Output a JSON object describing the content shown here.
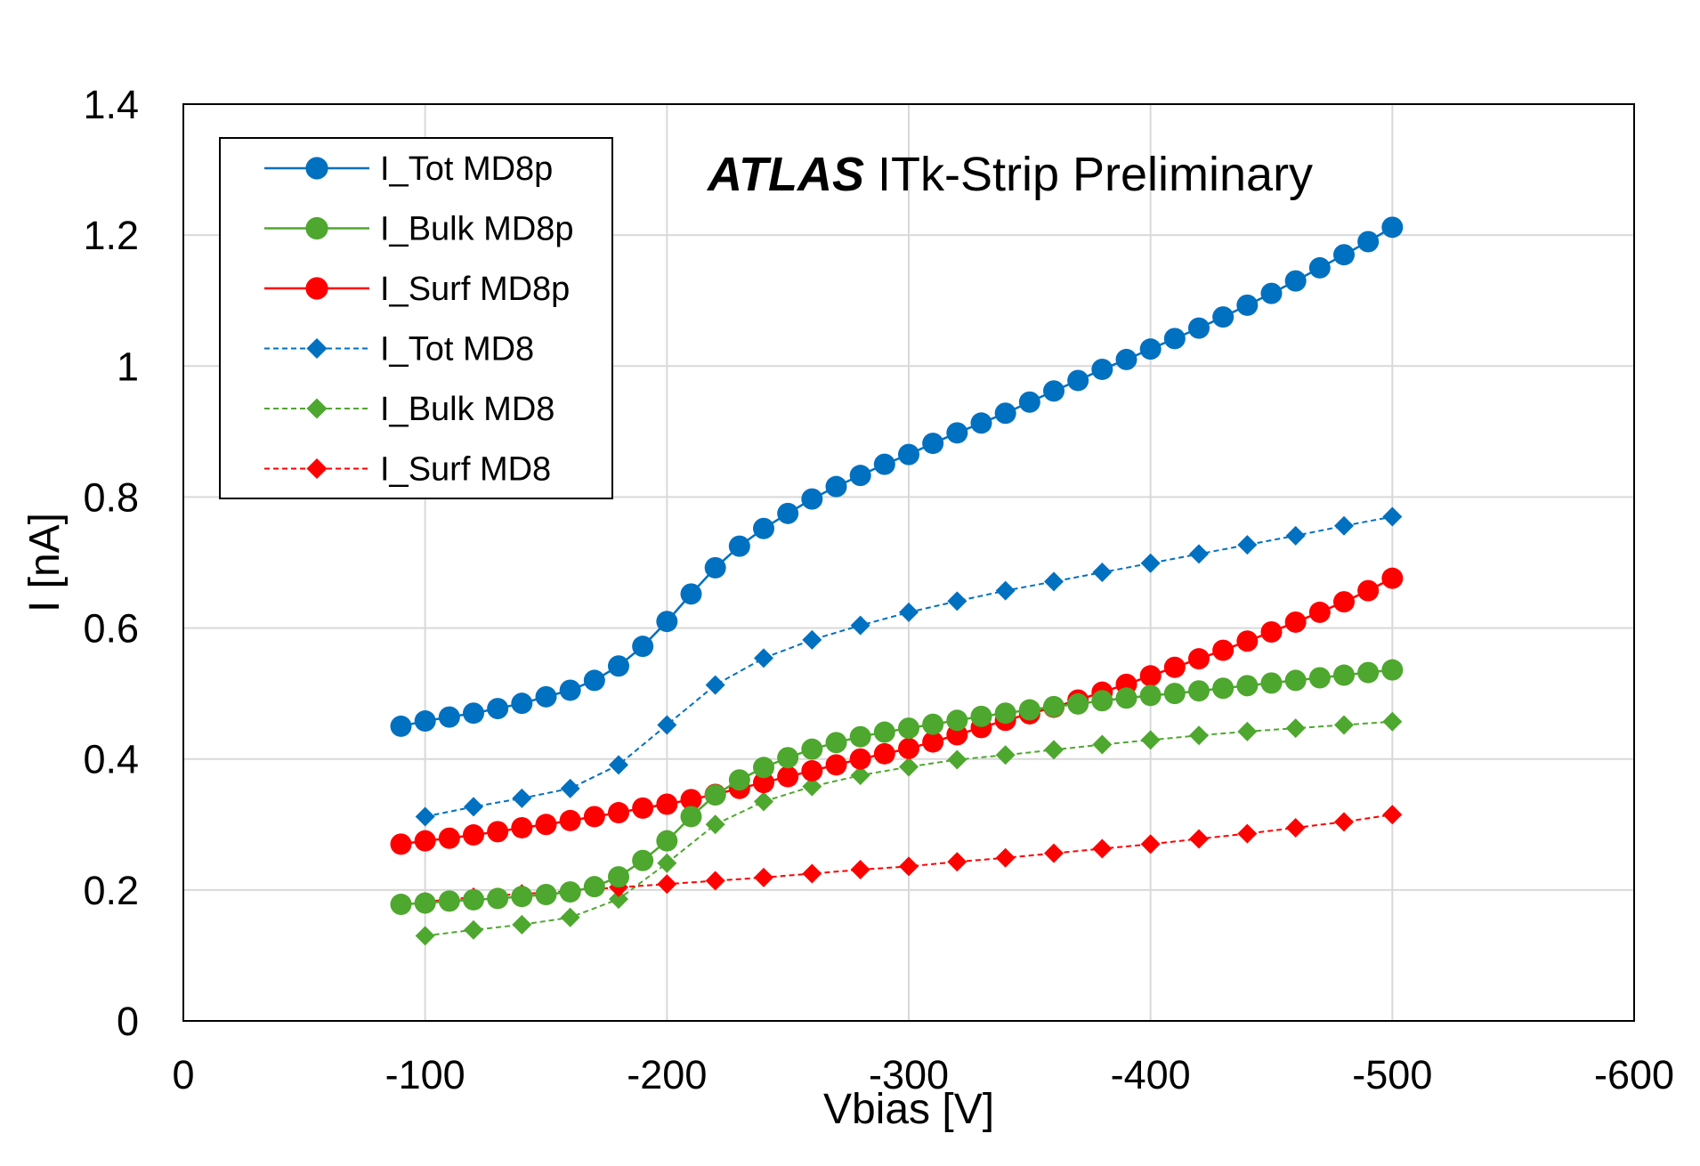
{
  "chart_data": {
    "type": "line",
    "title_bold": "ATLAS",
    "title_rest": " ITk-Strip Preliminary",
    "xlabel": "Vbias [V]",
    "ylabel": "I [nA]",
    "xlim": [
      0,
      -600
    ],
    "ylim": [
      0,
      1.4
    ],
    "xticks": [
      0,
      -100,
      -200,
      -300,
      -400,
      -500,
      -600
    ],
    "yticks": [
      0,
      0.2,
      0.4,
      0.6,
      0.8,
      1,
      1.2,
      1.4
    ],
    "xtick_labels": [
      "0",
      "-100",
      "-200",
      "-300",
      "-400",
      "-500",
      "-600"
    ],
    "ytick_labels": [
      "0",
      "0.2",
      "0.4",
      "0.6",
      "0.8",
      "1",
      "1.2",
      "1.4"
    ],
    "grid": true,
    "legend_position": "top-left",
    "series": [
      {
        "name": "I_Tot MD8p",
        "color": "#0070C0",
        "marker": "circle",
        "line": "solid",
        "x": [
          -90,
          -100,
          -110,
          -120,
          -130,
          -140,
          -150,
          -160,
          -170,
          -180,
          -190,
          -200,
          -210,
          -220,
          -230,
          -240,
          -250,
          -260,
          -270,
          -280,
          -290,
          -300,
          -310,
          -320,
          -330,
          -340,
          -350,
          -360,
          -370,
          -380,
          -390,
          -400,
          -410,
          -420,
          -430,
          -440,
          -450,
          -460,
          -470,
          -480,
          -490,
          -500
        ],
        "y": [
          0.45,
          0.458,
          0.464,
          0.47,
          0.477,
          0.485,
          0.495,
          0.505,
          0.52,
          0.542,
          0.572,
          0.61,
          0.652,
          0.692,
          0.725,
          0.752,
          0.775,
          0.797,
          0.816,
          0.833,
          0.85,
          0.865,
          0.882,
          0.898,
          0.913,
          0.928,
          0.945,
          0.962,
          0.978,
          0.995,
          1.01,
          1.026,
          1.042,
          1.058,
          1.075,
          1.093,
          1.111,
          1.13,
          1.15,
          1.17,
          1.19,
          1.212
        ]
      },
      {
        "name": "I_Bulk MD8p",
        "color": "#4EA72E",
        "marker": "circle",
        "line": "solid",
        "x": [
          -90,
          -100,
          -110,
          -120,
          -130,
          -140,
          -150,
          -160,
          -170,
          -180,
          -190,
          -200,
          -210,
          -220,
          -230,
          -240,
          -250,
          -260,
          -270,
          -280,
          -290,
          -300,
          -310,
          -320,
          -330,
          -340,
          -350,
          -360,
          -370,
          -380,
          -390,
          -400,
          -410,
          -420,
          -430,
          -440,
          -450,
          -460,
          -470,
          -480,
          -490,
          -500
        ],
        "y": [
          0.178,
          0.18,
          0.183,
          0.185,
          0.187,
          0.19,
          0.193,
          0.197,
          0.205,
          0.22,
          0.245,
          0.275,
          0.312,
          0.345,
          0.368,
          0.387,
          0.402,
          0.415,
          0.425,
          0.434,
          0.441,
          0.447,
          0.453,
          0.459,
          0.465,
          0.47,
          0.475,
          0.48,
          0.484,
          0.489,
          0.493,
          0.497,
          0.5,
          0.504,
          0.508,
          0.512,
          0.516,
          0.52,
          0.524,
          0.528,
          0.532,
          0.536
        ]
      },
      {
        "name": "I_Surf MD8p",
        "color": "#FF0000",
        "marker": "circle",
        "line": "solid",
        "x": [
          -90,
          -100,
          -110,
          -120,
          -130,
          -140,
          -150,
          -160,
          -170,
          -180,
          -190,
          -200,
          -210,
          -220,
          -230,
          -240,
          -250,
          -260,
          -270,
          -280,
          -290,
          -300,
          -310,
          -320,
          -330,
          -340,
          -350,
          -360,
          -370,
          -380,
          -390,
          -400,
          -410,
          -420,
          -430,
          -440,
          -450,
          -460,
          -470,
          -480,
          -490,
          -500
        ],
        "y": [
          0.27,
          0.275,
          0.279,
          0.284,
          0.289,
          0.295,
          0.3,
          0.306,
          0.312,
          0.318,
          0.325,
          0.331,
          0.338,
          0.346,
          0.355,
          0.364,
          0.373,
          0.382,
          0.391,
          0.4,
          0.408,
          0.416,
          0.426,
          0.437,
          0.448,
          0.459,
          0.469,
          0.479,
          0.49,
          0.502,
          0.514,
          0.527,
          0.54,
          0.553,
          0.566,
          0.58,
          0.594,
          0.609,
          0.624,
          0.64,
          0.657,
          0.676
        ]
      },
      {
        "name": "I_Tot MD8",
        "color": "#0070C0",
        "marker": "diamond",
        "line": "dashed",
        "x": [
          -100,
          -120,
          -140,
          -160,
          -180,
          -200,
          -220,
          -240,
          -260,
          -280,
          -300,
          -320,
          -340,
          -360,
          -380,
          -400,
          -420,
          -440,
          -460,
          -480,
          -500
        ],
        "y": [
          0.312,
          0.327,
          0.34,
          0.355,
          0.391,
          0.452,
          0.513,
          0.554,
          0.582,
          0.604,
          0.624,
          0.641,
          0.657,
          0.671,
          0.685,
          0.699,
          0.713,
          0.727,
          0.741,
          0.756,
          0.77
        ]
      },
      {
        "name": "I_Bulk MD8",
        "color": "#4EA72E",
        "marker": "diamond",
        "line": "dashed",
        "x": [
          -100,
          -120,
          -140,
          -160,
          -180,
          -200,
          -220,
          -240,
          -260,
          -280,
          -300,
          -320,
          -340,
          -360,
          -380,
          -400,
          -420,
          -440,
          -460,
          -480,
          -500
        ],
        "y": [
          0.13,
          0.139,
          0.147,
          0.158,
          0.186,
          0.241,
          0.3,
          0.335,
          0.358,
          0.375,
          0.388,
          0.399,
          0.406,
          0.414,
          0.422,
          0.429,
          0.436,
          0.442,
          0.447,
          0.452,
          0.457
        ]
      },
      {
        "name": "I_Surf MD8",
        "color": "#FF0000",
        "marker": "diamond",
        "line": "dashed",
        "x": [
          -100,
          -120,
          -140,
          -160,
          -180,
          -200,
          -220,
          -240,
          -260,
          -280,
          -300,
          -320,
          -340,
          -360,
          -380,
          -400,
          -420,
          -440,
          -460,
          -480,
          -500
        ],
        "y": [
          0.182,
          0.189,
          0.194,
          0.198,
          0.204,
          0.209,
          0.214,
          0.219,
          0.225,
          0.231,
          0.236,
          0.243,
          0.249,
          0.256,
          0.263,
          0.27,
          0.278,
          0.286,
          0.295,
          0.304,
          0.315
        ]
      }
    ]
  }
}
